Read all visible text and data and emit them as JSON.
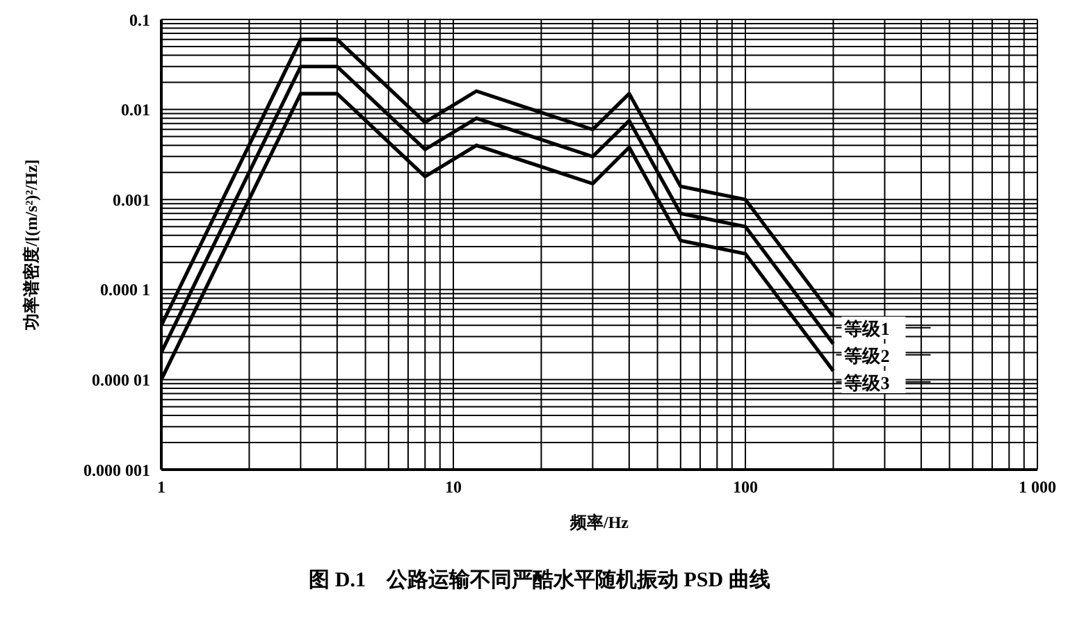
{
  "chart_data": {
    "type": "line",
    "title": "图 D.1　公路运输不同严酷水平随机振动 PSD 曲线",
    "xlabel": "频率/Hz",
    "ylabel": "功率谱密度/[(m/s²)²/Hz]",
    "log": "xy",
    "grid": true,
    "legend": false,
    "marker": "none",
    "line_style": "solid",
    "x": [
      1,
      3,
      4,
      8,
      12,
      30,
      40,
      60,
      100,
      200
    ],
    "series": [
      {
        "name": "等级1",
        "color": "#000000",
        "values": [
          4e-05,
          0.06,
          0.06,
          0.0072,
          0.016,
          0.006,
          0.015,
          0.0014,
          0.001,
          5e-05
        ]
      },
      {
        "name": "等级2",
        "color": "#000000",
        "values": [
          2e-05,
          0.03,
          0.03,
          0.0036,
          0.008,
          0.003,
          0.0075,
          0.0007,
          0.0005,
          2.5e-05
        ]
      },
      {
        "name": "等级3",
        "color": "#000000",
        "values": [
          1e-05,
          0.015,
          0.015,
          0.0018,
          0.004,
          0.0015,
          0.0038,
          0.00035,
          0.00025,
          1.25e-05
        ]
      }
    ],
    "xlim": [
      1,
      1000
    ],
    "xticks": [
      1,
      {
        "value": 2,
        "label": null
      },
      {
        "value": 3,
        "label": null
      },
      {
        "value": 4,
        "label": null
      },
      {
        "value": 5,
        "label": null
      },
      {
        "value": 6,
        "label": null
      },
      {
        "value": 7,
        "label": null
      },
      {
        "value": 8,
        "label": null
      },
      {
        "value": 9,
        "label": null
      },
      10,
      {
        "value": 20,
        "label": null
      },
      {
        "value": 30,
        "label": null
      },
      {
        "value": 40,
        "label": null
      },
      {
        "value": 50,
        "label": null
      },
      {
        "value": 60,
        "label": null
      },
      {
        "value": 70,
        "label": null
      },
      {
        "value": 80,
        "label": null
      },
      {
        "value": 90,
        "label": null
      },
      100,
      {
        "value": 200,
        "label": null
      },
      {
        "value": 300,
        "label": null
      },
      {
        "value": 400,
        "label": null
      },
      {
        "value": 500,
        "label": null
      },
      {
        "value": 600,
        "label": null
      },
      {
        "value": 700,
        "label": null
      },
      {
        "value": 800,
        "label": null
      },
      {
        "value": 900,
        "label": null
      },
      {
        "value": 1000,
        "label": "1 000"
      }
    ],
    "ylim": [
      1e-06,
      0.1
    ],
    "yticks": [
      {
        "value": 1e-06,
        "label": "0.000 001"
      },
      {
        "value": 2e-06,
        "label": null
      },
      {
        "value": 3e-06,
        "label": null
      },
      {
        "value": 4e-06,
        "label": null
      },
      {
        "value": 5e-06,
        "label": null
      },
      {
        "value": 6e-06,
        "label": null
      },
      {
        "value": 7e-06,
        "label": null
      },
      {
        "value": 8e-06,
        "label": null
      },
      {
        "value": 9e-06,
        "label": null
      },
      {
        "value": 1e-05,
        "label": "0.000 01"
      },
      {
        "value": 2e-05,
        "label": null
      },
      {
        "value": 3e-05,
        "label": null
      },
      {
        "value": 4e-05,
        "label": null
      },
      {
        "value": 5e-05,
        "label": null
      },
      {
        "value": 6e-05,
        "label": null
      },
      {
        "value": 7e-05,
        "label": null
      },
      {
        "value": 8e-05,
        "label": null
      },
      {
        "value": 9e-05,
        "label": null
      },
      {
        "value": 0.0001,
        "label": "0.000 1"
      },
      {
        "value": 0.0002,
        "label": null
      },
      {
        "value": 0.0003,
        "label": null
      },
      {
        "value": 0.0004,
        "label": null
      },
      {
        "value": 0.0005,
        "label": null
      },
      {
        "value": 0.0006,
        "label": null
      },
      {
        "value": 0.0007,
        "label": null
      },
      {
        "value": 0.0008,
        "label": null
      },
      {
        "value": 0.0009,
        "label": null
      },
      0.001,
      {
        "value": 0.002,
        "label": null
      },
      {
        "value": 0.003,
        "label": null
      },
      {
        "value": 0.004,
        "label": null
      },
      {
        "value": 0.005,
        "label": null
      },
      {
        "value": 0.006,
        "label": null
      },
      {
        "value": 0.007,
        "label": null
      },
      {
        "value": 0.008,
        "label": null
      },
      {
        "value": 0.009,
        "label": null
      },
      0.01,
      {
        "value": 0.02,
        "label": null
      },
      {
        "value": 0.03,
        "label": null
      },
      {
        "value": 0.04,
        "label": null
      },
      {
        "value": 0.05,
        "label": null
      },
      {
        "value": 0.06,
        "label": null
      },
      {
        "value": 0.07,
        "label": null
      },
      {
        "value": 0.08,
        "label": null
      },
      {
        "value": 0.09,
        "label": null
      },
      0.1
    ]
  }
}
